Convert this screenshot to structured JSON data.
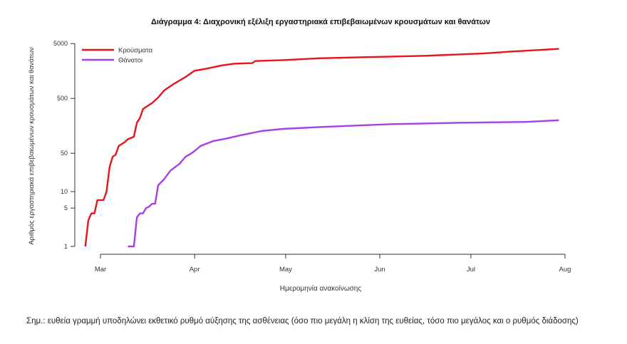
{
  "chart_data": {
    "type": "line",
    "title": "Διάγραμμα 4: Διαχρονική εξέλιξη εργαστηριακά επιβεβαιωμένων κρουσμάτων και θανάτων",
    "xlabel": "Ημερομηνία ανακοίνωσης",
    "ylabel": "Αριθμός εργαστηριακά επιβεβαιωμένων κρουσμάτων και θανάτων",
    "yscale": "log",
    "ylim": [
      1,
      5000
    ],
    "yticks": [
      1,
      5,
      10,
      50,
      500,
      5000
    ],
    "ytick_labels": [
      "1",
      "5",
      "10",
      "50",
      "500",
      "5000"
    ],
    "xlim": [
      "2020-02-22",
      "2020-08-03"
    ],
    "xticks": [
      "2020-03-01",
      "2020-04-01",
      "2020-05-01",
      "2020-06-01",
      "2020-07-01",
      "2020-08-01"
    ],
    "xtick_labels": [
      "Mar",
      "Apr",
      "May",
      "Jun",
      "Jul",
      "Aug"
    ],
    "grid": false,
    "legend_position": "top-left",
    "series": [
      {
        "name": "Κρούσματα",
        "color": "#e8141c",
        "points": [
          [
            "2020-02-25",
            1
          ],
          [
            "2020-02-26",
            3
          ],
          [
            "2020-02-27",
            4
          ],
          [
            "2020-02-28",
            4
          ],
          [
            "2020-02-29",
            7
          ],
          [
            "2020-03-02",
            7
          ],
          [
            "2020-03-03",
            10
          ],
          [
            "2020-03-04",
            28
          ],
          [
            "2020-03-05",
            43
          ],
          [
            "2020-03-06",
            47
          ],
          [
            "2020-03-07",
            68
          ],
          [
            "2020-03-09",
            80
          ],
          [
            "2020-03-10",
            90
          ],
          [
            "2020-03-12",
            100
          ],
          [
            "2020-03-13",
            180
          ],
          [
            "2020-03-14",
            220
          ],
          [
            "2020-03-15",
            320
          ],
          [
            "2020-03-16",
            350
          ],
          [
            "2020-03-18",
            410
          ],
          [
            "2020-03-20",
            520
          ],
          [
            "2020-03-22",
            700
          ],
          [
            "2020-03-25",
            910
          ],
          [
            "2020-03-29",
            1230
          ],
          [
            "2020-04-01",
            1600
          ],
          [
            "2020-04-05",
            1750
          ],
          [
            "2020-04-10",
            2000
          ],
          [
            "2020-04-14",
            2150
          ],
          [
            "2020-04-20",
            2200
          ],
          [
            "2020-04-21",
            2400
          ],
          [
            "2020-04-30",
            2500
          ],
          [
            "2020-05-12",
            2700
          ],
          [
            "2020-06-05",
            2900
          ],
          [
            "2020-06-16",
            3000
          ],
          [
            "2020-07-05",
            3300
          ],
          [
            "2020-07-15",
            3600
          ],
          [
            "2020-07-30",
            4000
          ]
        ]
      },
      {
        "name": "Θάνατοι",
        "color": "#a83ee8",
        "points": [
          [
            "2020-03-10",
            1
          ],
          [
            "2020-03-12",
            1
          ],
          [
            "2020-03-13",
            3.4
          ],
          [
            "2020-03-14",
            4
          ],
          [
            "2020-03-15",
            4
          ],
          [
            "2020-03-16",
            5
          ],
          [
            "2020-03-17",
            5.3
          ],
          [
            "2020-03-18",
            6
          ],
          [
            "2020-03-19",
            6
          ],
          [
            "2020-03-20",
            13
          ],
          [
            "2020-03-22",
            17
          ],
          [
            "2020-03-24",
            24
          ],
          [
            "2020-03-27",
            32
          ],
          [
            "2020-03-29",
            43
          ],
          [
            "2020-03-31",
            50
          ],
          [
            "2020-04-01",
            55
          ],
          [
            "2020-04-03",
            68
          ],
          [
            "2020-04-07",
            83
          ],
          [
            "2020-04-12",
            94
          ],
          [
            "2020-04-16",
            106
          ],
          [
            "2020-04-23",
            127
          ],
          [
            "2020-04-30",
            139
          ],
          [
            "2020-05-12",
            150
          ],
          [
            "2020-05-24",
            160
          ],
          [
            "2020-06-05",
            170
          ],
          [
            "2020-06-28",
            180
          ],
          [
            "2020-07-19",
            186
          ],
          [
            "2020-07-30",
            200
          ]
        ]
      }
    ]
  },
  "note": "Σημ.: ευθεία γραμμή υποδηλώνει εκθετικό ρυθμό αύξησης της ασθένειας (όσο πιο μεγάλη η κλίση της ευθείας, τόσο πιο μεγάλος και ο ρυθμός διάδοσης)"
}
